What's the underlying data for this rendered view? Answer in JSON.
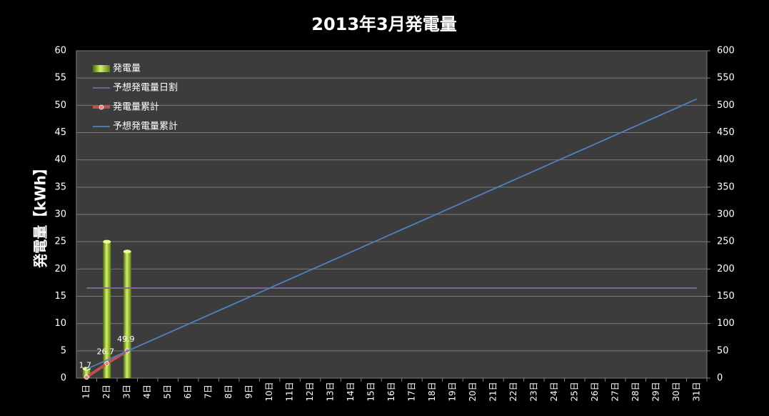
{
  "chart_data": {
    "type": "bar",
    "title": "2013年3月発電量",
    "y_label": "発電量【kWh】",
    "categories": [
      "1日",
      "2日",
      "3日",
      "4日",
      "5日",
      "6日",
      "7日",
      "8日",
      "9日",
      "10日",
      "11日",
      "12日",
      "13日",
      "14日",
      "15日",
      "16日",
      "17日",
      "18日",
      "19日",
      "20日",
      "21日",
      "22日",
      "23日",
      "24日",
      "25日",
      "26日",
      "27日",
      "28日",
      "29日",
      "30日",
      "31日"
    ],
    "series": [
      {
        "name": "発電量",
        "type": "bar",
        "color": "#9acd32",
        "values": [
          1.7,
          25,
          23.2,
          null,
          null,
          null,
          null,
          null,
          null,
          null,
          null,
          null,
          null,
          null,
          null,
          null,
          null,
          null,
          null,
          null,
          null,
          null,
          null,
          null,
          null,
          null,
          null,
          null,
          null,
          null,
          null
        ]
      },
      {
        "name": "予想発電量日割",
        "type": "line",
        "color": "#8064a2",
        "values": [
          16.5,
          16.5,
          16.5,
          16.5,
          16.5,
          16.5,
          16.5,
          16.5,
          16.5,
          16.5,
          16.5,
          16.5,
          16.5,
          16.5,
          16.5,
          16.5,
          16.5,
          16.5,
          16.5,
          16.5,
          16.5,
          16.5,
          16.5,
          16.5,
          16.5,
          16.5,
          16.5,
          16.5,
          16.5,
          16.5,
          16.5
        ]
      },
      {
        "name": "発電量累計",
        "type": "line",
        "axis": "y2",
        "color": "#c0504d",
        "markers": true,
        "data_labels": true,
        "values": [
          1.7,
          26.7,
          49.9,
          null,
          null,
          null,
          null,
          null,
          null,
          null,
          null,
          null,
          null,
          null,
          null,
          null,
          null,
          null,
          null,
          null,
          null,
          null,
          null,
          null,
          null,
          null,
          null,
          null,
          null,
          null,
          null
        ]
      },
      {
        "name": "予想発電量累計",
        "type": "line",
        "axis": "y2",
        "color": "#4f81bd",
        "values": [
          16.5,
          33,
          49.5,
          66,
          82.5,
          99,
          115.5,
          132,
          148.5,
          165,
          181.5,
          198,
          214.5,
          231,
          247.5,
          264,
          280.5,
          297,
          313.5,
          330,
          346.5,
          363,
          379.5,
          396,
          412.5,
          429,
          445.5,
          462,
          478.5,
          495,
          511.5
        ]
      }
    ],
    "ylim": [
      0,
      60
    ],
    "yticks": [
      0,
      5,
      10,
      15,
      20,
      25,
      30,
      35,
      40,
      45,
      50,
      55,
      60
    ],
    "y2lim": [
      0,
      600
    ],
    "y2ticks": [
      0,
      50,
      100,
      150,
      200,
      250,
      300,
      350,
      400,
      450,
      500,
      550,
      600
    ],
    "grid": true,
    "legend": "top-left"
  }
}
